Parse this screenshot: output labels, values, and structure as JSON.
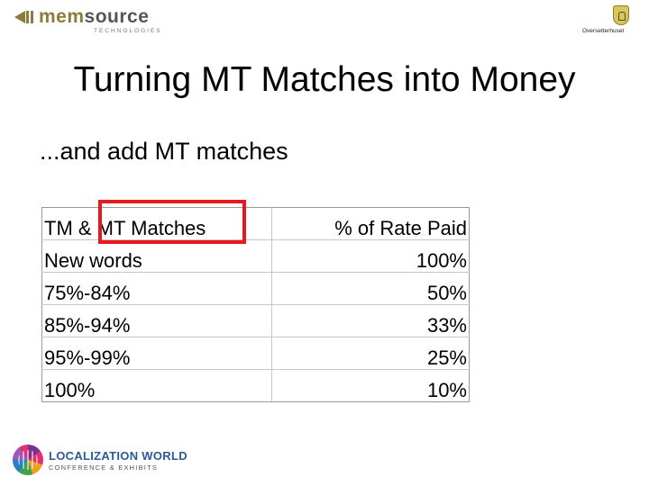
{
  "logos": {
    "memsource": {
      "brand_prefix": "mem",
      "brand_suffix": "source",
      "tagline": "TECHNOLOGIES",
      "color": "#8f7a3a"
    },
    "oversetterhuset": {
      "text": "Oversetterhuset"
    },
    "localization_world": {
      "name": "LOCALIZATION WORLD",
      "tagline": "CONFERENCE & EXHIBITS"
    }
  },
  "slide": {
    "title": "Turning MT Matches into Money",
    "subtitle": "...and add MT matches"
  },
  "table": {
    "headers": [
      "TM & MT Matches",
      "% of Rate Paid"
    ],
    "rows": [
      [
        "New words",
        "100%"
      ],
      [
        "75%-84%",
        "50%"
      ],
      [
        "85%-94%",
        "33%"
      ],
      [
        "95%-99%",
        "25%"
      ],
      [
        "100%",
        "10%"
      ]
    ]
  },
  "highlight_color": "#e8181f"
}
